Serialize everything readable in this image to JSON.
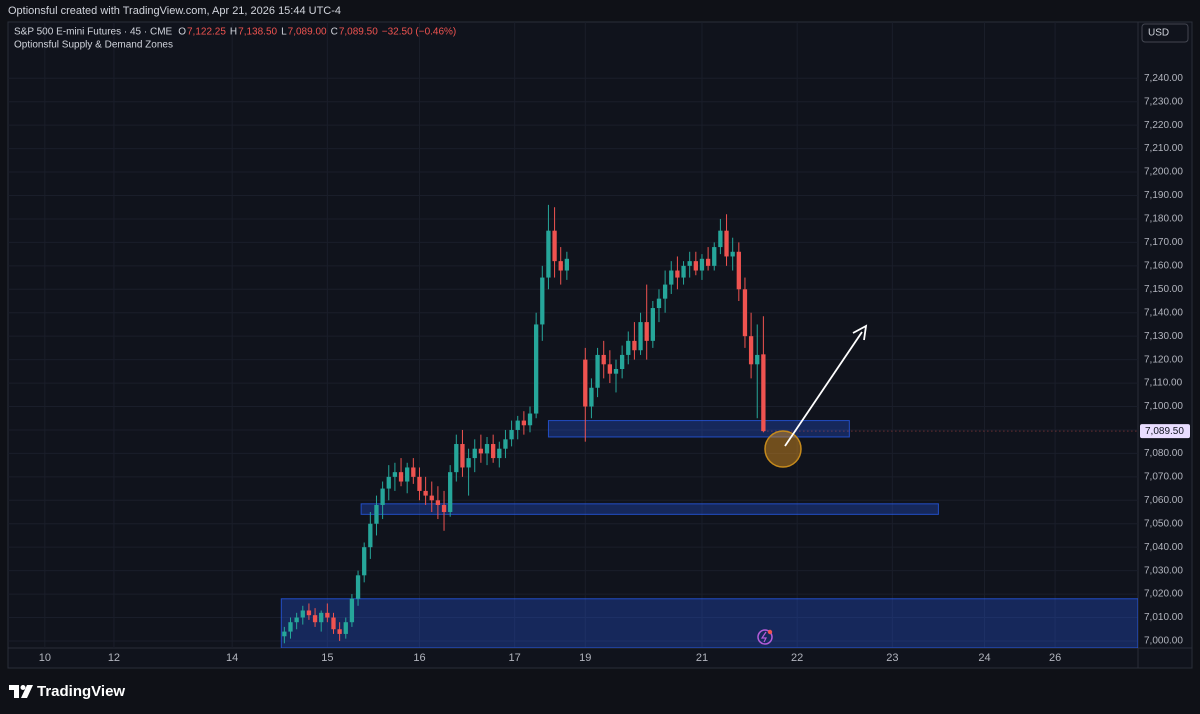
{
  "header": {
    "credit": "Optionsful created with TradingView.com, Apr 21, 2026 15:44 UTC-4"
  },
  "footer": {
    "brand": "TradingView"
  },
  "chart_data": {
    "type": "candlestick",
    "title": "S&P 500 E-mini Futures · 45 · CME",
    "ohlc": [
      {
        "key": "O",
        "label": "7,122.25"
      },
      {
        "key": "H",
        "label": "7,138.50"
      },
      {
        "key": "L",
        "label": "7,089.00"
      },
      {
        "key": "C",
        "label": "7,089.50"
      }
    ],
    "change": "−32.50 (−0.46%)",
    "indicator": "Optionsful Supply & Demand Zones",
    "currency": "USD",
    "last_price_label": "7,089.50",
    "up_color": "#26a69a",
    "down_color": "#ef5350",
    "zone_color": "#2962ff",
    "grid": true,
    "xlim": [
      0,
      368
    ],
    "ylim": [
      6997,
      7264
    ],
    "xticks": [
      {
        "value": 12,
        "label": "10"
      },
      {
        "value": 34.5,
        "label": "12"
      },
      {
        "value": 73,
        "label": "14"
      },
      {
        "value": 104,
        "label": "15"
      },
      {
        "value": 134,
        "label": "16"
      },
      {
        "value": 165,
        "label": "17"
      },
      {
        "value": 188,
        "label": "19"
      },
      {
        "value": 226,
        "label": "21"
      },
      {
        "value": 257,
        "label": "22"
      },
      {
        "value": 288,
        "label": "23"
      },
      {
        "value": 318,
        "label": "24"
      },
      {
        "value": 341,
        "label": "26"
      }
    ],
    "yticks": [
      {
        "value": 7000,
        "label": "7,000.00"
      },
      {
        "value": 7010,
        "label": "7,010.00"
      },
      {
        "value": 7020,
        "label": "7,020.00"
      },
      {
        "value": 7030,
        "label": "7,030.00"
      },
      {
        "value": 7040,
        "label": "7,040.00"
      },
      {
        "value": 7050,
        "label": "7,050.00"
      },
      {
        "value": 7060,
        "label": "7,060.00"
      },
      {
        "value": 7070,
        "label": "7,070.00"
      },
      {
        "value": 7080,
        "label": "7,080.00"
      },
      {
        "value": 7090,
        "label": "7,090.00"
      },
      {
        "value": 7100,
        "label": "7,100.00"
      },
      {
        "value": 7110,
        "label": "7,110.00"
      },
      {
        "value": 7120,
        "label": "7,120.00"
      },
      {
        "value": 7130,
        "label": "7,130.00"
      },
      {
        "value": 7140,
        "label": "7,140.00"
      },
      {
        "value": 7150,
        "label": "7,150.00"
      },
      {
        "value": 7160,
        "label": "7,160.00"
      },
      {
        "value": 7170,
        "label": "7,170.00"
      },
      {
        "value": 7180,
        "label": "7,180.00"
      },
      {
        "value": 7190,
        "label": "7,190.00"
      },
      {
        "value": 7200,
        "label": "7,200.00"
      },
      {
        "value": 7210,
        "label": "7,210.00"
      },
      {
        "value": 7220,
        "label": "7,220.00"
      },
      {
        "value": 7230,
        "label": "7,230.00"
      },
      {
        "value": 7240,
        "label": "7,240.00"
      }
    ],
    "zones": [
      {
        "x0": 176,
        "x1": 274,
        "low": 7087,
        "high": 7094
      },
      {
        "x0": 115,
        "x1": 303,
        "low": 7054,
        "high": 7058.5
      },
      {
        "x0": 89,
        "x1": 368,
        "low": 6997,
        "high": 7018
      }
    ],
    "x": [
      90,
      92,
      94,
      96,
      98,
      100,
      102,
      104,
      106,
      108,
      110,
      112,
      114,
      116,
      118,
      120,
      122,
      124,
      126,
      128,
      130,
      132,
      134,
      136,
      138,
      140,
      142,
      144,
      146,
      148,
      150,
      152,
      154,
      156,
      158,
      160,
      162,
      164,
      166,
      168,
      170,
      172,
      174,
      176,
      178,
      180,
      182,
      188,
      190,
      192,
      194,
      196,
      198,
      200,
      202,
      204,
      206,
      208,
      210,
      212,
      214,
      216,
      218,
      220,
      222,
      224,
      226,
      228,
      230,
      232,
      234,
      236,
      238,
      240,
      242,
      244,
      246
    ],
    "open": [
      7002,
      7004,
      7008,
      7010,
      7013,
      7011,
      7008,
      7012,
      7010,
      7005,
      7003,
      7008,
      7018,
      7028,
      7040,
      7050,
      7058,
      7065,
      7070,
      7072,
      7068,
      7074,
      7070,
      7064,
      7062,
      7060,
      7058,
      7055,
      7072,
      7084,
      7074,
      7078,
      7082,
      7080,
      7084,
      7078,
      7082,
      7086,
      7090,
      7094,
      7092,
      7097,
      7135,
      7155,
      7175,
      7162,
      7158,
      7120,
      7100,
      7108,
      7122,
      7118,
      7114,
      7116,
      7122,
      7128,
      7124,
      7136,
      7128,
      7142,
      7146,
      7152,
      7158,
      7155,
      7160,
      7162,
      7158,
      7163,
      7160,
      7168,
      7175,
      7164,
      7166,
      7150,
      7130,
      7118,
      7122.25
    ],
    "high": [
      7006,
      7010,
      7012,
      7015,
      7016,
      7014,
      7013,
      7016,
      7012,
      7008,
      7010,
      7020,
      7030,
      7042,
      7055,
      7062,
      7068,
      7075,
      7076,
      7078,
      7076,
      7078,
      7074,
      7070,
      7068,
      7066,
      7064,
      7075,
      7088,
      7090,
      7082,
      7086,
      7088,
      7087,
      7088,
      7085,
      7090,
      7094,
      7096,
      7098,
      7100,
      7140,
      7160,
      7186,
      7185,
      7168,
      7166,
      7125,
      7112,
      7125,
      7128,
      7124,
      7120,
      7126,
      7132,
      7136,
      7140,
      7152,
      7145,
      7150,
      7158,
      7162,
      7164,
      7162,
      7166,
      7166,
      7165,
      7168,
      7170,
      7180,
      7182,
      7172,
      7170,
      7155,
      7140,
      7135,
      7138.5
    ],
    "low": [
      6999,
      7001,
      7005,
      7007,
      7009,
      7006,
      7004,
      7008,
      7003,
      7000,
      7001,
      7006,
      7015,
      7025,
      7035,
      7045,
      7052,
      7060,
      7064,
      7066,
      7063,
      7067,
      7060,
      7058,
      7055,
      7052,
      7047,
      7053,
      7068,
      7070,
      7062,
      7072,
      7076,
      7075,
      7076,
      7074,
      7078,
      7083,
      7086,
      7088,
      7089,
      7095,
      7128,
      7150,
      7155,
      7152,
      7154,
      7085,
      7095,
      7104,
      7112,
      7110,
      7106,
      7112,
      7118,
      7120,
      7122,
      7120,
      7125,
      7136,
      7140,
      7148,
      7150,
      7152,
      7155,
      7156,
      7154,
      7158,
      7158,
      7165,
      7160,
      7158,
      7145,
      7125,
      7112,
      7095,
      7089
    ],
    "close": [
      7004,
      7008,
      7010,
      7013,
      7011,
      7008,
      7012,
      7010,
      7005,
      7003,
      7008,
      7018,
      7028,
      7040,
      7050,
      7058,
      7065,
      7070,
      7072,
      7068,
      7074,
      7070,
      7064,
      7062,
      7060,
      7058,
      7055,
      7072,
      7084,
      7074,
      7078,
      7082,
      7080,
      7084,
      7078,
      7082,
      7086,
      7090,
      7094,
      7092,
      7097,
      7135,
      7155,
      7175,
      7162,
      7158,
      7163,
      7100,
      7108,
      7122,
      7118,
      7114,
      7116,
      7122,
      7128,
      7124,
      7136,
      7128,
      7142,
      7146,
      7152,
      7158,
      7155,
      7160,
      7162,
      7158,
      7163,
      7160,
      7168,
      7175,
      7164,
      7166,
      7150,
      7130,
      7118,
      7122,
      7089.5
    ]
  }
}
